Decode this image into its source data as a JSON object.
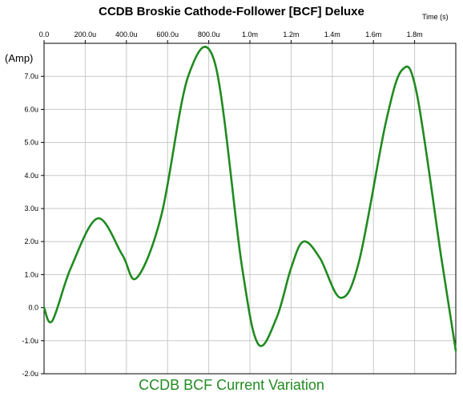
{
  "chart_data": {
    "type": "line",
    "title": "CCDB Broskie Cathode-Follower [BCF] Deluxe",
    "subtitle": "CCDB BCF Current Variation",
    "xlabel": "Time  (s)",
    "ylabel": "(Amp)",
    "xlim": [
      0,
      0.002
    ],
    "ylim": [
      -2.0,
      8.0
    ],
    "x_ticks": [
      {
        "value": 0.0,
        "label": "0.0"
      },
      {
        "value": 0.0002,
        "label": "200.0u"
      },
      {
        "value": 0.0004,
        "label": "400.0u"
      },
      {
        "value": 0.0006,
        "label": "600.0u"
      },
      {
        "value": 0.0008,
        "label": "800.0u"
      },
      {
        "value": 0.001,
        "label": "1.0m"
      },
      {
        "value": 0.0012,
        "label": "1.2m"
      },
      {
        "value": 0.0014,
        "label": "1.4m"
      },
      {
        "value": 0.0016,
        "label": "1.6m"
      },
      {
        "value": 0.0018,
        "label": "1.8m"
      }
    ],
    "y_ticks": [
      {
        "value": 7.0,
        "label": "7.0u"
      },
      {
        "value": 6.0,
        "label": "6.0u"
      },
      {
        "value": 5.0,
        "label": "5.0u"
      },
      {
        "value": 4.0,
        "label": "4.0u"
      },
      {
        "value": 3.0,
        "label": "3.0u"
      },
      {
        "value": 2.0,
        "label": "2.0u"
      },
      {
        "value": 1.0,
        "label": "1.0u"
      },
      {
        "value": 0.0,
        "label": "0.0"
      },
      {
        "value": -1.0,
        "label": "-1.0u"
      },
      {
        "value": -2.0,
        "label": "-2.0u"
      }
    ],
    "grid": true,
    "series": [
      {
        "color": "#1f8a1f",
        "x": [
          0.0,
          4e-05,
          0.00013,
          0.00026,
          0.00038,
          0.00045,
          0.00057,
          0.0007,
          0.00083,
          0.00096,
          0.00104,
          0.00113,
          0.0012,
          0.00126,
          0.00134,
          0.00144,
          0.00153,
          0.00166,
          0.00174,
          0.00181,
          0.00193,
          0.002
        ],
        "y": [
          0.0,
          -0.4,
          1.2,
          2.7,
          1.6,
          0.9,
          2.8,
          7.0,
          7.4,
          1.3,
          -1.1,
          -0.3,
          1.2,
          2.0,
          1.5,
          0.3,
          1.4,
          5.6,
          7.2,
          6.5,
          1.5,
          -1.3
        ]
      }
    ]
  }
}
